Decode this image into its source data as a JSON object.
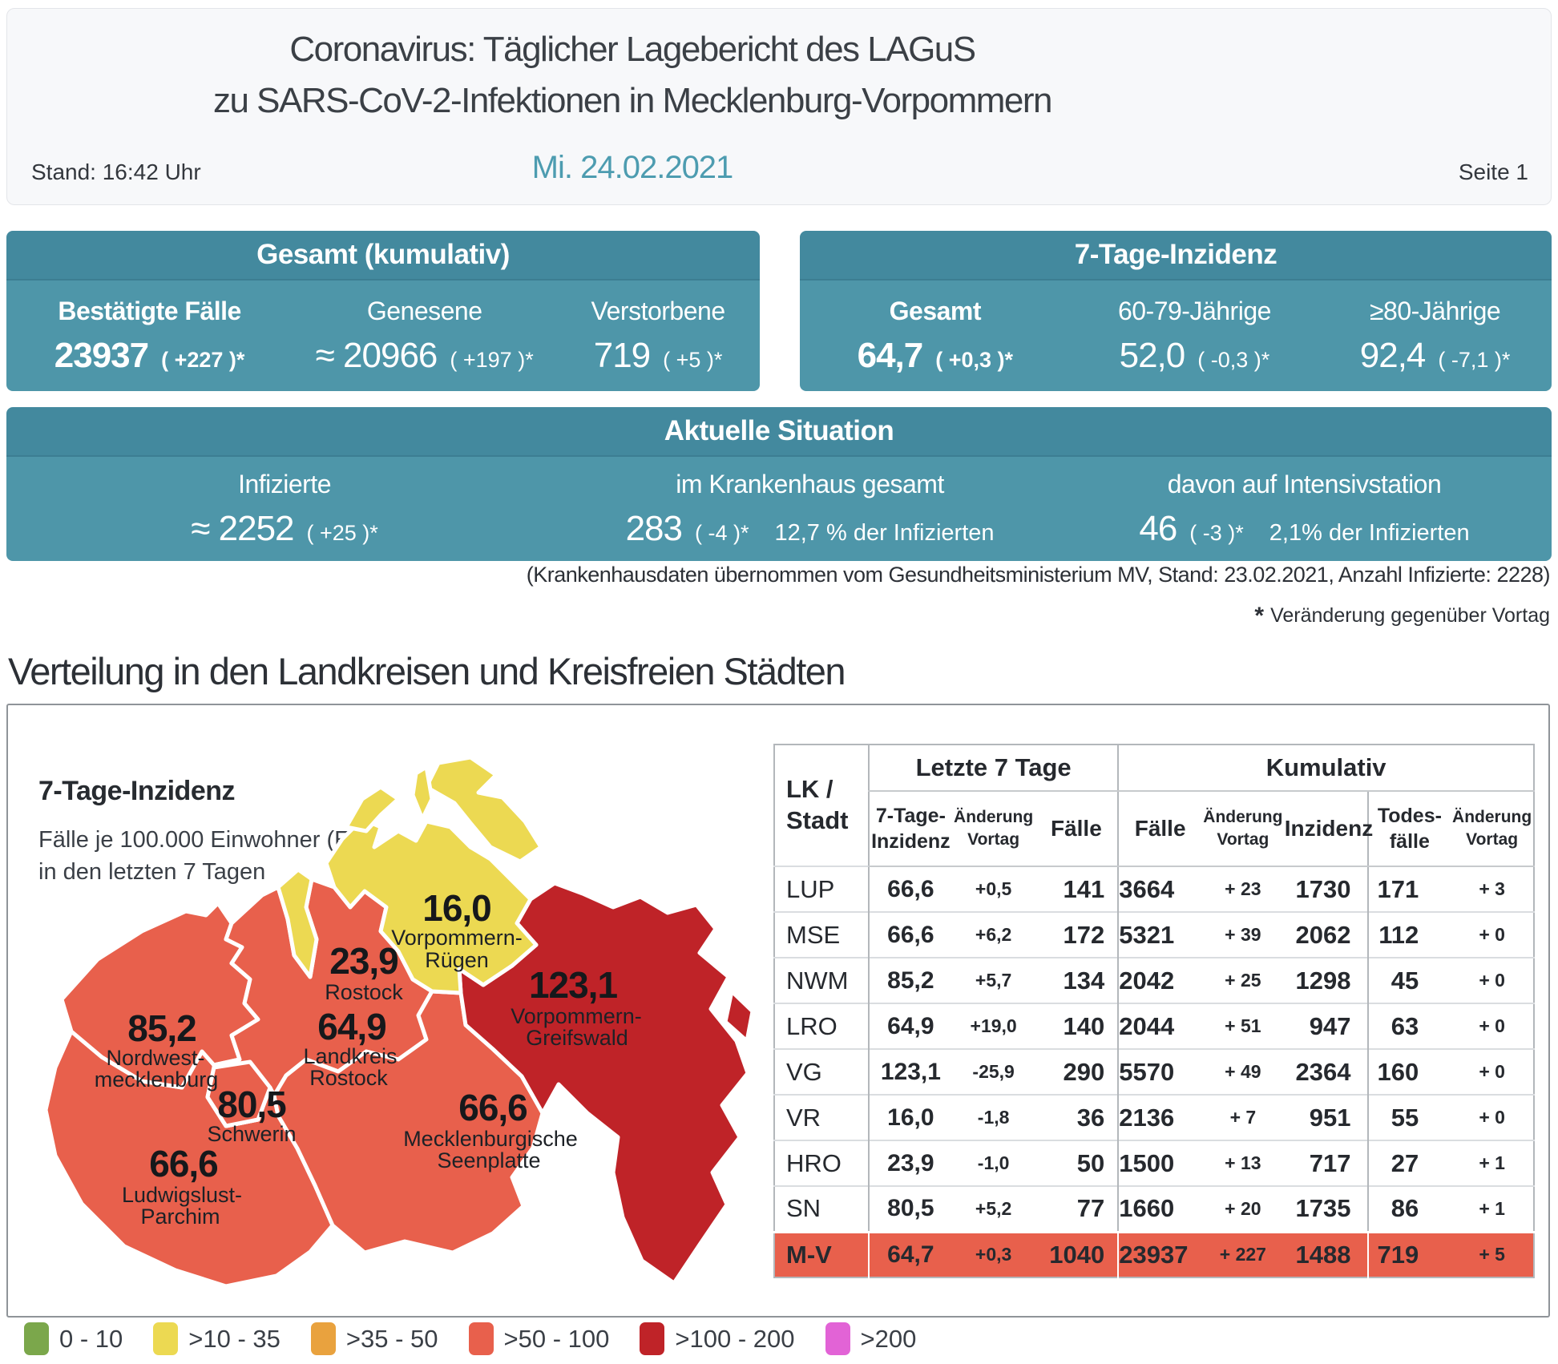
{
  "header": {
    "title_line1": "Coronavirus: Täglicher Lagebericht des LAGuS",
    "title_line2": "zu SARS-CoV-2-Infektionen in Mecklenburg-Vorpommern",
    "stand": "Stand: 16:42 Uhr",
    "date": "Mi. 24.02.2021",
    "page": "Seite 1"
  },
  "cards": {
    "gesamt": {
      "title": "Gesamt (kumulativ)",
      "cols": [
        {
          "label": "Bestätigte Fälle",
          "value": "23937",
          "change": "( +227 )*"
        },
        {
          "label": "Genesene",
          "value": "≈ 20966",
          "change": "( +197 )*"
        },
        {
          "label": "Verstorbene",
          "value": "719",
          "change": "( +5 )*"
        }
      ]
    },
    "inzidenz": {
      "title": "7-Tage-Inzidenz",
      "cols": [
        {
          "label": "Gesamt",
          "value": "64,7",
          "change": "( +0,3 )*"
        },
        {
          "label": "60-79-Jährige",
          "value": "52,0",
          "change": "( -0,3 )*"
        },
        {
          "label": "≥80-Jährige",
          "value": "92,4",
          "change": "( -7,1 )*"
        }
      ]
    },
    "situation": {
      "title": "Aktuelle Situation",
      "cols": [
        {
          "label": "Infizierte",
          "value": "≈ 2252",
          "change": "( +25 )*",
          "extra": ""
        },
        {
          "label": "im Krankenhaus gesamt",
          "value": "283",
          "change": "( -4 )*",
          "extra": "12,7 % der Infizierten"
        },
        {
          "label": "davon auf Intensivstation",
          "value": "46",
          "change": "( -3 )*",
          "extra": "2,1% der Infizierten"
        }
      ]
    }
  },
  "footnotes": {
    "hospital": "(Krankenhausdaten übernommen vom Gesundheitsministerium MV, Stand: 23.02.2021, Anzahl Infizierte: 2228)",
    "asterisk_mark": "*",
    "asterisk_text": "Veränderung gegenüber Vortag"
  },
  "section_title": "Verteilung in den Landkreisen und Kreisfreien Städten",
  "map": {
    "title": "7-Tage-Inzidenz",
    "subtitle1": "Fälle je 100.000 Einwohner (EW)",
    "subtitle2": "in den letzten 7 Tagen",
    "regions": [
      {
        "id": "vorpommern-ruegen",
        "value": "16,0",
        "name": [
          "Vorpommern-",
          "Rügen"
        ],
        "color": "#ecd952"
      },
      {
        "id": "rostock-stadt",
        "value": "23,9",
        "name": [
          "Rostock"
        ],
        "color": "#ecd952"
      },
      {
        "id": "landkreis-rostock",
        "value": "64,9",
        "name": [
          "Landkreis",
          "Rostock"
        ],
        "color": "#e8604c"
      },
      {
        "id": "nordwestmecklenburg",
        "value": "85,2",
        "name": [
          "Nordwest-",
          "mecklenburg"
        ],
        "color": "#e8604c"
      },
      {
        "id": "schwerin",
        "value": "80,5",
        "name": [
          "Schwerin"
        ],
        "color": "#e8604c"
      },
      {
        "id": "ludwigslust-parchim",
        "value": "66,6",
        "name": [
          "Ludwigslust-",
          "Parchim"
        ],
        "color": "#e8604c"
      },
      {
        "id": "vorpommern-greifswald",
        "value": "123,1",
        "name": [
          "Vorpommern-",
          "Greifswald"
        ],
        "color": "#bf2328"
      },
      {
        "id": "mecklenburgische-seenplatte",
        "value": "66,6",
        "name": [
          "Mecklenburgische",
          "Seenplatte"
        ],
        "color": "#e8604c"
      }
    ]
  },
  "table": {
    "header": {
      "lk1": "LK /",
      "lk2": "Stadt",
      "group7": "Letzte 7 Tage",
      "groupk": "Kumulativ",
      "inz1": "7-Tage-",
      "inz2": "Inzidenz",
      "aend1": "Änderung",
      "aend2": "Vortag",
      "faelle": "Fälle",
      "k_faelle": "Fälle",
      "k_inzidenz": "Inzidenz",
      "tod1": "Todes-",
      "tod2": "fälle"
    },
    "rows": [
      {
        "code": "LUP",
        "inz": "66,6",
        "chg": "+0,5",
        "faelle": "141",
        "kfaelle": "3664",
        "kchg": "+ 23",
        "kinz": "1730",
        "tod": "171",
        "tchg": "+ 3",
        "highlight": false
      },
      {
        "code": "MSE",
        "inz": "66,6",
        "chg": "+6,2",
        "faelle": "172",
        "kfaelle": "5321",
        "kchg": "+ 39",
        "kinz": "2062",
        "tod": "112",
        "tchg": "+ 0",
        "highlight": false
      },
      {
        "code": "NWM",
        "inz": "85,2",
        "chg": "+5,7",
        "faelle": "134",
        "kfaelle": "2042",
        "kchg": "+ 25",
        "kinz": "1298",
        "tod": "45",
        "tchg": "+ 0",
        "highlight": false
      },
      {
        "code": "LRO",
        "inz": "64,9",
        "chg": "+19,0",
        "faelle": "140",
        "kfaelle": "2044",
        "kchg": "+ 51",
        "kinz": "947",
        "tod": "63",
        "tchg": "+ 0",
        "highlight": false
      },
      {
        "code": "VG",
        "inz": "123,1",
        "chg": "-25,9",
        "faelle": "290",
        "kfaelle": "5570",
        "kchg": "+ 49",
        "kinz": "2364",
        "tod": "160",
        "tchg": "+ 0",
        "highlight": false
      },
      {
        "code": "VR",
        "inz": "16,0",
        "chg": "-1,8",
        "faelle": "36",
        "kfaelle": "2136",
        "kchg": "+ 7",
        "kinz": "951",
        "tod": "55",
        "tchg": "+ 0",
        "highlight": false
      },
      {
        "code": "HRO",
        "inz": "23,9",
        "chg": "-1,0",
        "faelle": "50",
        "kfaelle": "1500",
        "kchg": "+ 13",
        "kinz": "717",
        "tod": "27",
        "tchg": "+ 1",
        "highlight": false
      },
      {
        "code": "SN",
        "inz": "80,5",
        "chg": "+5,2",
        "faelle": "77",
        "kfaelle": "1660",
        "kchg": "+ 20",
        "kinz": "1735",
        "tod": "86",
        "tchg": "+ 1",
        "highlight": false
      },
      {
        "code": "M-V",
        "inz": "64,7",
        "chg": "+0,3",
        "faelle": "1040",
        "kfaelle": "23937",
        "kchg": "+ 227",
        "kinz": "1488",
        "tod": "719",
        "tchg": "+ 5",
        "highlight": true
      }
    ]
  },
  "legend": {
    "items": [
      {
        "label": "0 - 10",
        "color": "#7ba74b"
      },
      {
        "label": ">10 - 35",
        "color": "#ecd952"
      },
      {
        "label": ">35 - 50",
        "color": "#e9a23e"
      },
      {
        "label": ">50 - 100",
        "color": "#e8604c"
      },
      {
        "label": ">100 - 200",
        "color": "#bf2328"
      },
      {
        "label": ">200",
        "color": "#e263d6"
      }
    ]
  },
  "colors": {
    "teal_header": "#43899e",
    "teal_body": "#4e96a9",
    "accent_blue": "#3b79dd",
    "highlight_row": "#e8604c"
  }
}
